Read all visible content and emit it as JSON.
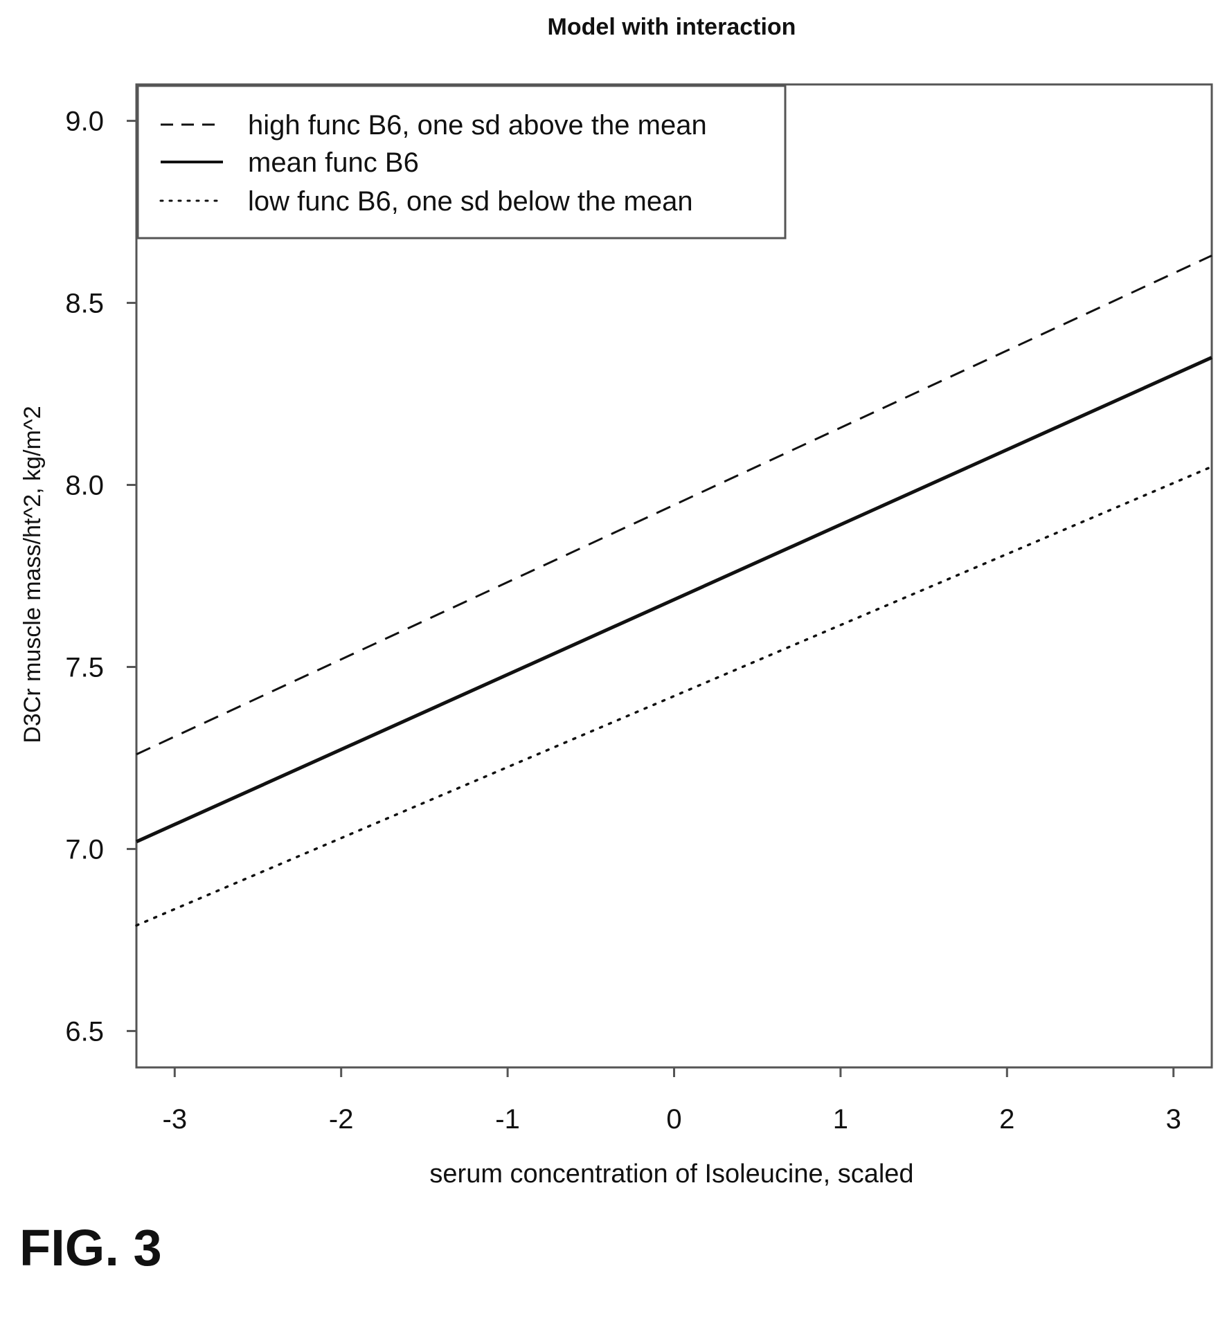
{
  "chart_data": {
    "type": "line",
    "title": "Model with interaction",
    "xlabel": "serum concentration of Isoleucine, scaled",
    "ylabel": "D3Cr muscle mass/ht^2, kg/m^2",
    "xlim": [
      -3.23,
      3.23
    ],
    "ylim": [
      6.4,
      9.1
    ],
    "xticks": [
      -3,
      -2,
      -1,
      0,
      1,
      2,
      3
    ],
    "xtick_labels": [
      "-3",
      "-2",
      "-1",
      "0",
      "1",
      "2",
      "3"
    ],
    "yticks": [
      6.5,
      7.0,
      7.5,
      8.0,
      8.5,
      9.0
    ],
    "ytick_labels": [
      "6.5",
      "7.0",
      "7.5",
      "8.0",
      "8.5",
      "9.0"
    ],
    "grid": false,
    "legend_position": "top-left",
    "series": [
      {
        "name": "high func B6, one sd above the mean",
        "style": "dashed",
        "x": [
          -3.23,
          3.23
        ],
        "y": [
          7.26,
          8.63
        ]
      },
      {
        "name": "mean func B6",
        "style": "solid",
        "x": [
          -3.23,
          3.23
        ],
        "y": [
          7.02,
          8.35
        ]
      },
      {
        "name": "low func B6, one sd below the mean",
        "style": "dotted",
        "x": [
          -3.23,
          3.23
        ],
        "y": [
          6.79,
          8.05
        ]
      }
    ]
  },
  "figure_label": "FIG. 3"
}
